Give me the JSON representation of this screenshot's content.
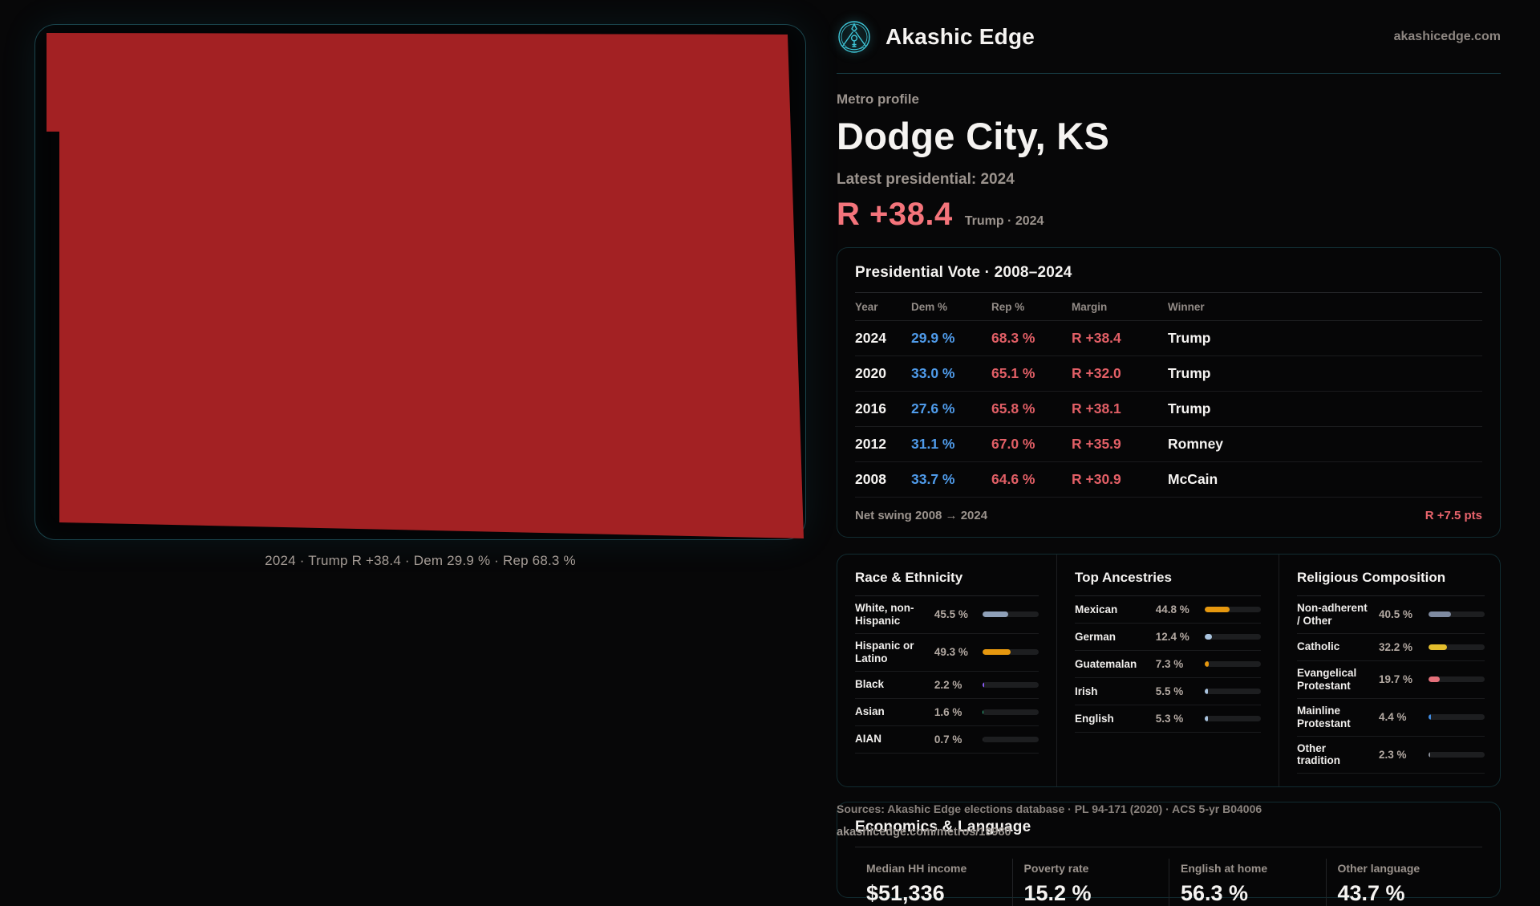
{
  "brand": {
    "name": "Akashic Edge",
    "domain": "akashicedge.com",
    "accent": "#3fc6d8"
  },
  "map": {
    "fill": "#a32123",
    "caption": "2024 · Trump R +38.4 · Dem 29.9 % · Rep 68.3 %"
  },
  "profile": {
    "kicker": "Metro profile",
    "title": "Dodge City, KS",
    "latest_label": "Latest presidential: 2024",
    "margin_big": "R +38.4",
    "margin_sub": "Trump · 2024"
  },
  "vote_table": {
    "title": "Presidential Vote · 2008–2024",
    "columns": {
      "year": "Year",
      "dem": "Dem %",
      "rep": "Rep %",
      "margin": "Margin",
      "winner": "Winner"
    },
    "rows": [
      {
        "year": "2024",
        "dem": "29.9 %",
        "rep": "68.3 %",
        "margin": "R +38.4",
        "winner": "Trump"
      },
      {
        "year": "2020",
        "dem": "33.0 %",
        "rep": "65.1 %",
        "margin": "R +32.0",
        "winner": "Trump"
      },
      {
        "year": "2016",
        "dem": "27.6 %",
        "rep": "65.8 %",
        "margin": "R +38.1",
        "winner": "Trump"
      },
      {
        "year": "2012",
        "dem": "31.1 %",
        "rep": "67.0 %",
        "margin": "R +35.9",
        "winner": "Romney"
      },
      {
        "year": "2008",
        "dem": "33.7 %",
        "rep": "64.6 %",
        "margin": "R +30.9",
        "winner": "McCain"
      }
    ],
    "net_swing_label": "Net swing 2008 → 2024",
    "net_swing_value": "R +7.5 pts"
  },
  "race": {
    "title": "Race & Ethnicity",
    "rows": [
      {
        "label": "White, non-Hispanic",
        "value": "45.5 %",
        "pct": 45.5,
        "color": "#8fa0b8"
      },
      {
        "label": "Hispanic or Latino",
        "value": "49.3 %",
        "pct": 49.3,
        "color": "#e6980f"
      },
      {
        "label": "Black",
        "value": "2.2 %",
        "pct": 2.2,
        "color": "#8b5cf6"
      },
      {
        "label": "Asian",
        "value": "1.6 %",
        "pct": 1.6,
        "color": "#2ecc8f"
      },
      {
        "label": "AIAN",
        "value": "0.7 %",
        "pct": 0.7,
        "color": "#2a2b2e"
      }
    ]
  },
  "ancestry": {
    "title": "Top Ancestries",
    "rows": [
      {
        "label": "Mexican",
        "value": "44.8 %",
        "pct": 44.8,
        "color": "#e6980f"
      },
      {
        "label": "German",
        "value": "12.4 %",
        "pct": 12.4,
        "color": "#a9c3de"
      },
      {
        "label": "Guatemalan",
        "value": "7.3 %",
        "pct": 7.3,
        "color": "#e6980f"
      },
      {
        "label": "Irish",
        "value": "5.5 %",
        "pct": 5.5,
        "color": "#a9c3de"
      },
      {
        "label": "English",
        "value": "5.3 %",
        "pct": 5.3,
        "color": "#a9c3de"
      }
    ]
  },
  "religion": {
    "title": "Religious Composition",
    "rows": [
      {
        "label": "Non-adherent / Other",
        "value": "40.5 %",
        "pct": 40.5,
        "color": "#7e8aa0"
      },
      {
        "label": "Catholic",
        "value": "32.2 %",
        "pct": 32.2,
        "color": "#e3bd2d"
      },
      {
        "label": "Evangelical Protestant",
        "value": "19.7 %",
        "pct": 19.7,
        "color": "#e4707a"
      },
      {
        "label": "Mainline Protestant",
        "value": "4.4 %",
        "pct": 4.4,
        "color": "#3f8be0"
      },
      {
        "label": "Other tradition",
        "value": "2.3 %",
        "pct": 2.3,
        "color": "#8a8f98"
      }
    ]
  },
  "economics": {
    "title": "Economics & Language",
    "stats": [
      {
        "label": "Median HH income",
        "value": "$51,336"
      },
      {
        "label": "Poverty rate",
        "value": "15.2 %"
      },
      {
        "label": "English at home",
        "value": "56.3 %"
      },
      {
        "label": "Other language",
        "value": "43.7 %"
      }
    ]
  },
  "footer": {
    "sources": "Sources: Akashic Edge elections database · PL 94-171 (2020) · ACS 5-yr B04006",
    "permalink": "akashicedge.com/metros/19980"
  }
}
